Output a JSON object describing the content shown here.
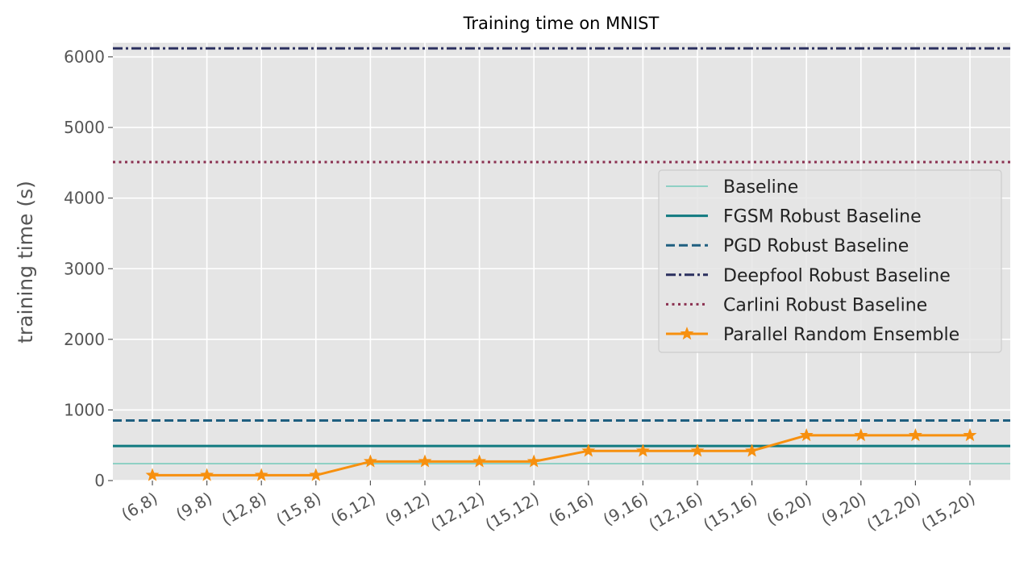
{
  "chart_data": {
    "type": "line",
    "title": "Training time on MNIST",
    "xlabel": "",
    "ylabel": "training time (s)",
    "categories": [
      "(6,8)",
      "(9,8)",
      "(12,8)",
      "(15,8)",
      "(6,12)",
      "(9,12)",
      "(12,12)",
      "(15,12)",
      "(6,16)",
      "(9,16)",
      "(12,16)",
      "(15,16)",
      "(6,20)",
      "(9,20)",
      "(12,20)",
      "(15,20)"
    ],
    "ylim": [
      0,
      6200
    ],
    "yticks": [
      0,
      1000,
      2000,
      3000,
      4000,
      5000,
      6000
    ],
    "grid": true,
    "legend_position": "center-right",
    "background_color": "#e5e5e5",
    "series": [
      {
        "name": "Baseline",
        "kind": "hline",
        "value": 240,
        "color": "#8fd0c4",
        "style": "solid",
        "width": 2
      },
      {
        "name": "FGSM Robust Baseline",
        "kind": "hline",
        "value": 490,
        "color": "#117a80",
        "style": "solid",
        "width": 3
      },
      {
        "name": "PGD Robust Baseline",
        "kind": "hline",
        "value": 850,
        "color": "#1f5f80",
        "style": "dashed",
        "width": 3
      },
      {
        "name": "Deepfool Robust Baseline",
        "kind": "hline",
        "value": 6120,
        "color": "#2a2f5e",
        "style": "dashdot",
        "width": 3
      },
      {
        "name": "Carlini Robust Baseline",
        "kind": "hline",
        "value": 4510,
        "color": "#8a3050",
        "style": "dotted",
        "width": 3
      },
      {
        "name": "Parallel Random Ensemble",
        "kind": "line",
        "marker": "star",
        "color": "#f7900f",
        "style": "solid",
        "width": 3,
        "values": [
          75,
          75,
          75,
          75,
          270,
          270,
          270,
          270,
          420,
          420,
          420,
          420,
          640,
          640,
          640,
          640
        ]
      }
    ]
  }
}
